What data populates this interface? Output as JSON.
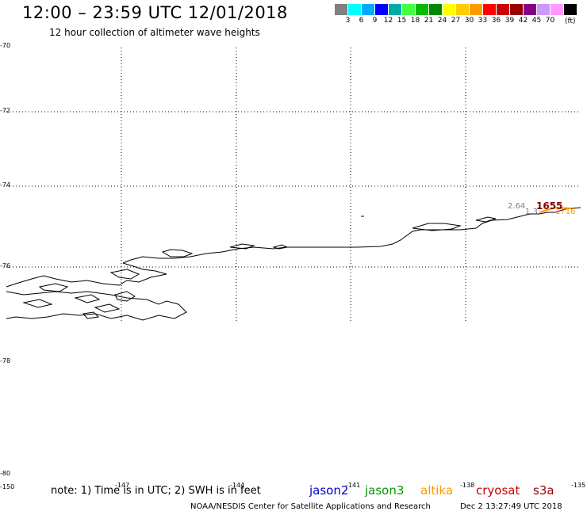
{
  "header": {
    "title": "12:00 – 23:59 UTC 12/01/2018",
    "subtitle": "12 hour collection of altimeter wave heights"
  },
  "legend": {
    "colors": [
      "#808080",
      "#00ffff",
      "#00aaff",
      "#0000ff",
      "#00aaaa",
      "#44ff44",
      "#00bb00",
      "#008800",
      "#ffff00",
      "#ffcc00",
      "#ff9900",
      "#ff0000",
      "#cc0000",
      "#990000",
      "#880088",
      "#cc99ff",
      "#ff99ff",
      "#000000"
    ],
    "labels": [
      "3",
      "6",
      "9",
      "12",
      "15",
      "18",
      "21",
      "24",
      "27",
      "30",
      "33",
      "36",
      "39",
      "42",
      "45",
      "70"
    ],
    "unit": "(ft)"
  },
  "axes": {
    "lat_labels": [
      "-70",
      "-72",
      "-74",
      "-76",
      "-78",
      "-80"
    ],
    "lon_labels": [
      "-150",
      "-147",
      "-144",
      "-141",
      "-138",
      "-135"
    ]
  },
  "track_labels": {
    "swh1": "2.64",
    "time1": "1655",
    "swh2": "1.3",
    "time2": "1716"
  },
  "footer": {
    "note": "note: 1) Time is in UTC; 2) SWH is in feet",
    "satellites": [
      {
        "name": "jason2",
        "color": "#0000cc"
      },
      {
        "name": "jason3",
        "color": "#009900"
      },
      {
        "name": "altika",
        "color": "#ff9900"
      },
      {
        "name": "cryosat",
        "color": "#cc0000"
      },
      {
        "name": "s3a",
        "color": "#990000"
      }
    ],
    "credit": "NOAA/NESDIS Center for Satellite Applications and Research",
    "timestamp": "Dec  2 13:27:49 UTC 2018"
  }
}
